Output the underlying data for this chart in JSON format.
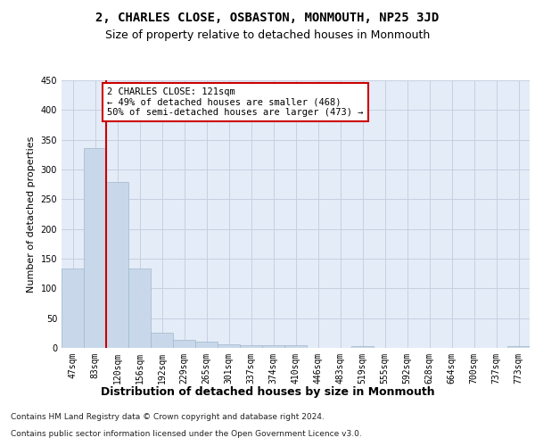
{
  "title": "2, CHARLES CLOSE, OSBASTON, MONMOUTH, NP25 3JD",
  "subtitle": "Size of property relative to detached houses in Monmouth",
  "xlabel": "Distribution of detached houses by size in Monmouth",
  "ylabel": "Number of detached properties",
  "categories": [
    "47sqm",
    "83sqm",
    "120sqm",
    "156sqm",
    "192sqm",
    "229sqm",
    "265sqm",
    "301sqm",
    "337sqm",
    "374sqm",
    "410sqm",
    "446sqm",
    "483sqm",
    "519sqm",
    "555sqm",
    "592sqm",
    "628sqm",
    "664sqm",
    "700sqm",
    "737sqm",
    "773sqm"
  ],
  "values": [
    133,
    336,
    279,
    134,
    26,
    14,
    10,
    6,
    5,
    4,
    4,
    0,
    0,
    3,
    0,
    0,
    0,
    0,
    0,
    0,
    3
  ],
  "bar_color": "#c8d8ea",
  "bar_edgecolor": "#a0b8cc",
  "vline_x": 2.0,
  "vline_color": "#cc0000",
  "annotation_text": "2 CHARLES CLOSE: 121sqm\n← 49% of detached houses are smaller (468)\n50% of semi-detached houses are larger (473) →",
  "annotation_box_color": "#ffffff",
  "annotation_box_edgecolor": "#cc0000",
  "ylim": [
    0,
    450
  ],
  "yticks": [
    0,
    50,
    100,
    150,
    200,
    250,
    300,
    350,
    400,
    450
  ],
  "grid_color": "#c8d0e0",
  "background_color": "#e4ecf8",
  "footer_line1": "Contains HM Land Registry data © Crown copyright and database right 2024.",
  "footer_line2": "Contains public sector information licensed under the Open Government Licence v3.0.",
  "title_fontsize": 10,
  "subtitle_fontsize": 9,
  "xlabel_fontsize": 9,
  "ylabel_fontsize": 8,
  "tick_fontsize": 7,
  "annot_fontsize": 7.5,
  "footer_fontsize": 6.5
}
